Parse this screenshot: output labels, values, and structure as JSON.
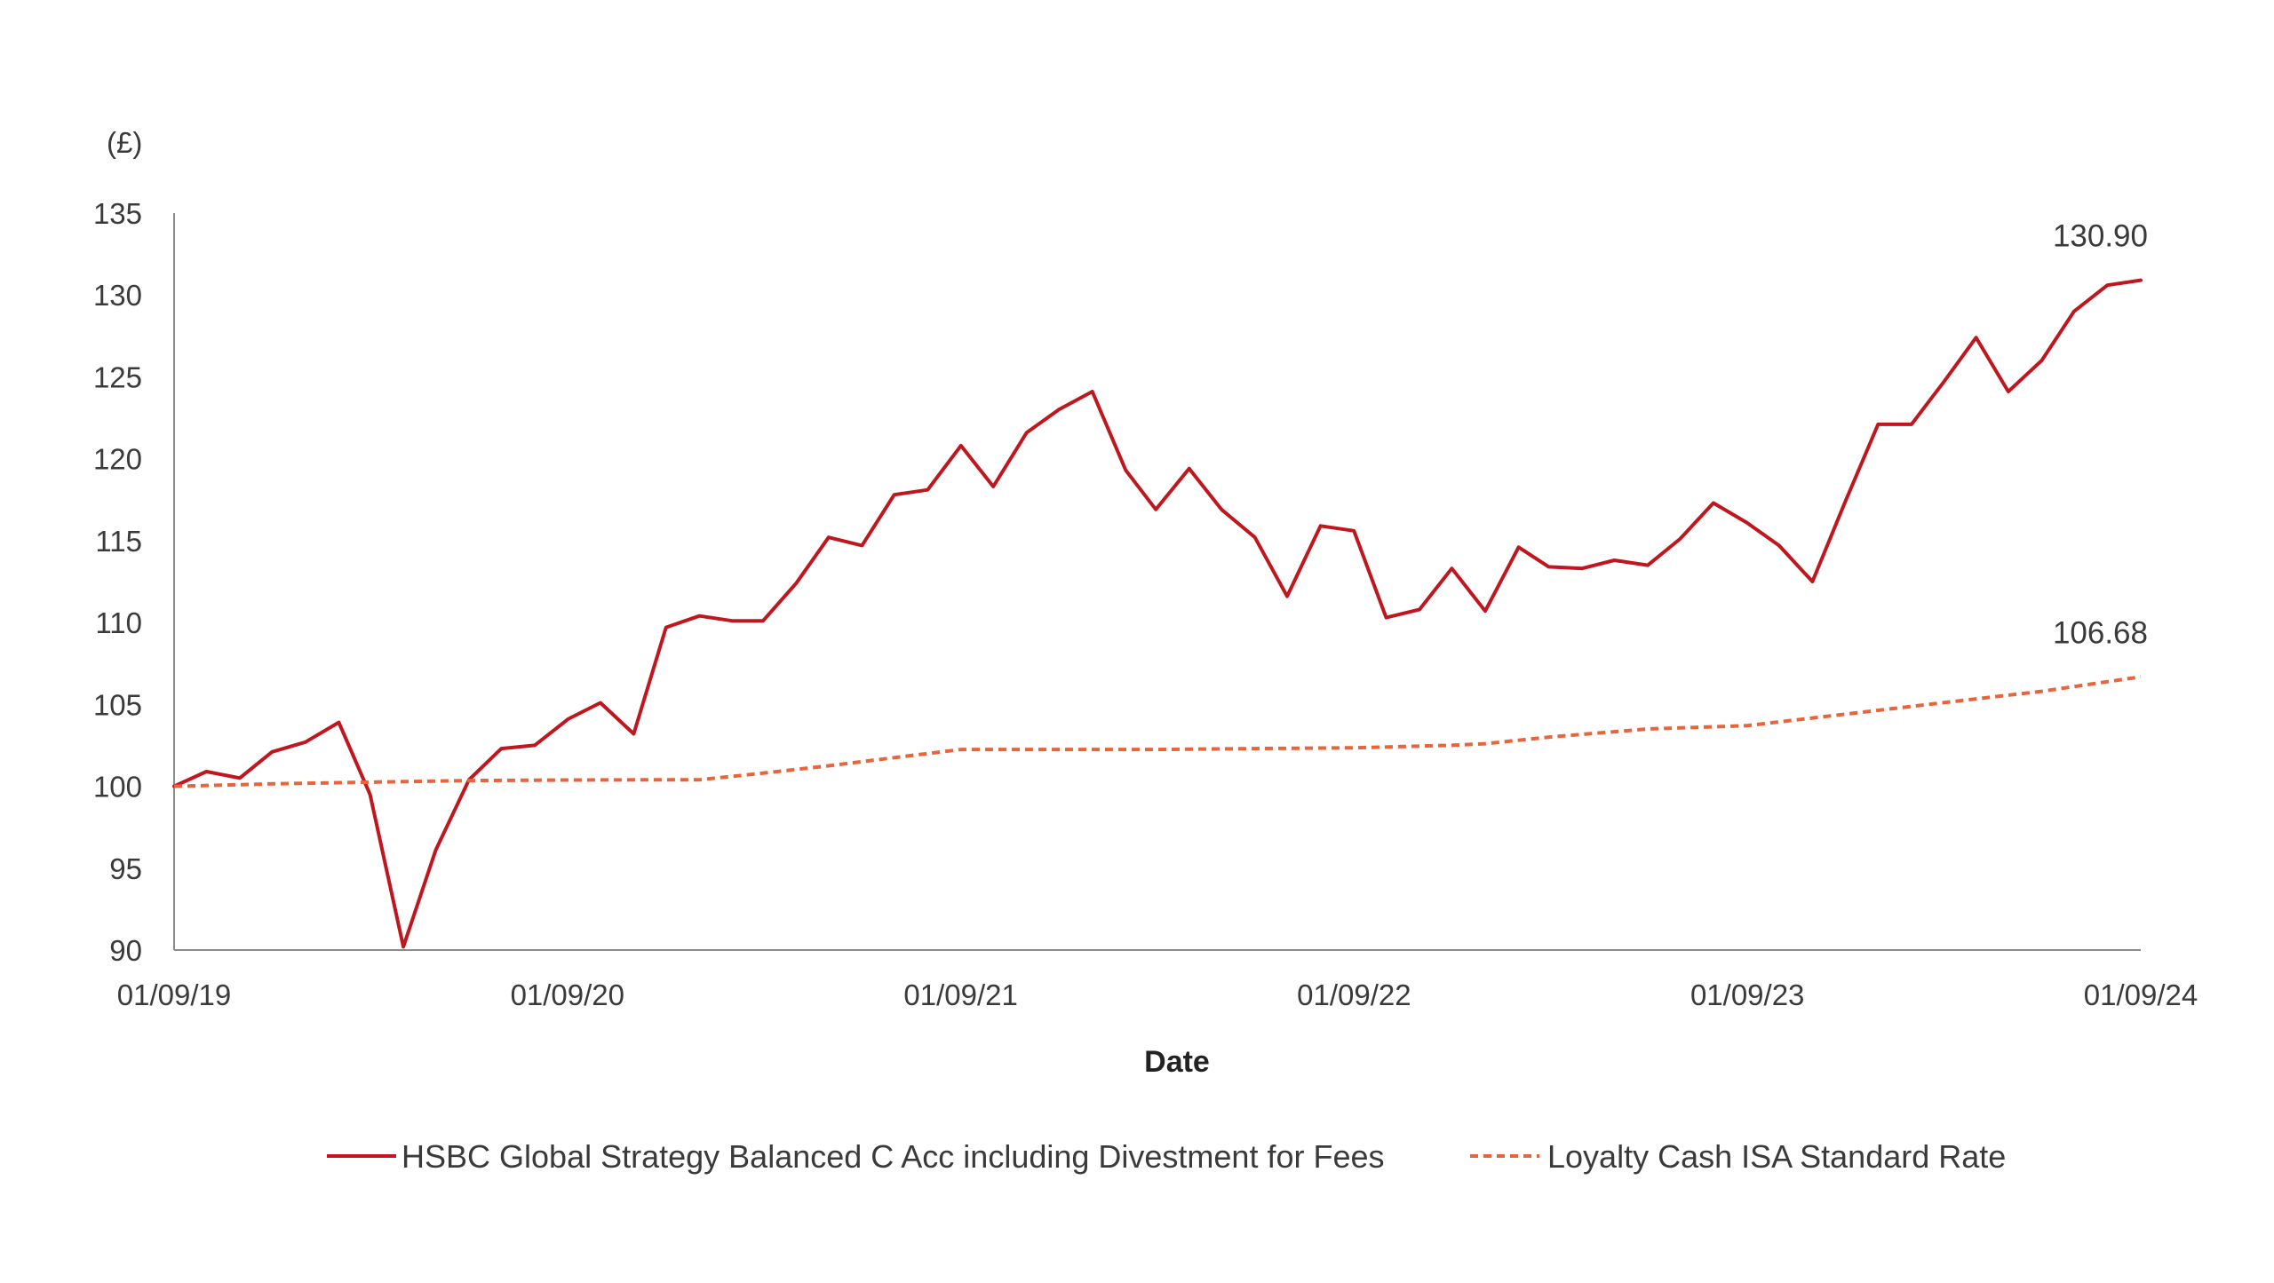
{
  "chart_data": {
    "type": "line",
    "title": "",
    "y_unit_label": "(£)",
    "xlabel": "Date",
    "ylabel": "",
    "ylim": [
      90,
      135
    ],
    "y_ticks": [
      90,
      95,
      100,
      105,
      110,
      115,
      120,
      125,
      130,
      135
    ],
    "y_tick_labels": [
      "90",
      "95",
      "100",
      "105",
      "110",
      "115",
      "120",
      "125",
      "130",
      "135"
    ],
    "x_ticks": [
      "01/09/19",
      "01/09/20",
      "01/09/21",
      "01/09/22",
      "01/09/23",
      "01/09/24"
    ],
    "grid": false,
    "legend_position": "bottom",
    "series": [
      {
        "name": "HSBC Global Strategy Balanced C Acc including Divestment for Fees",
        "color": "#c0161e",
        "style": "solid",
        "end_label": "130.90",
        "points": [
          [
            "2019-09-01",
            100.0
          ],
          [
            "2019-10-01",
            100.9
          ],
          [
            "2019-11-01",
            100.5
          ],
          [
            "2019-12-01",
            102.1
          ],
          [
            "2020-01-01",
            102.7
          ],
          [
            "2020-02-01",
            103.9
          ],
          [
            "2020-03-01",
            99.5
          ],
          [
            "2020-04-01",
            90.2
          ],
          [
            "2020-05-01",
            96.1
          ],
          [
            "2020-06-01",
            100.4
          ],
          [
            "2020-07-01",
            102.3
          ],
          [
            "2020-08-01",
            102.5
          ],
          [
            "2020-09-01",
            104.1
          ],
          [
            "2020-10-01",
            105.1
          ],
          [
            "2020-11-01",
            103.2
          ],
          [
            "2020-12-01",
            109.7
          ],
          [
            "2021-01-01",
            110.4
          ],
          [
            "2021-02-01",
            110.1
          ],
          [
            "2021-03-01",
            110.1
          ],
          [
            "2021-04-01",
            112.4
          ],
          [
            "2021-05-01",
            115.2
          ],
          [
            "2021-06-01",
            114.7
          ],
          [
            "2021-07-01",
            117.8
          ],
          [
            "2021-08-01",
            118.1
          ],
          [
            "2021-09-01",
            120.8
          ],
          [
            "2021-10-01",
            118.3
          ],
          [
            "2021-11-01",
            121.6
          ],
          [
            "2021-12-01",
            123.0
          ],
          [
            "2022-01-01",
            124.1
          ],
          [
            "2022-02-01",
            119.3
          ],
          [
            "2022-03-01",
            116.9
          ],
          [
            "2022-04-01",
            119.4
          ],
          [
            "2022-05-01",
            116.9
          ],
          [
            "2022-06-01",
            115.2
          ],
          [
            "2022-07-01",
            111.6
          ],
          [
            "2022-08-01",
            115.9
          ],
          [
            "2022-09-01",
            115.6
          ],
          [
            "2022-10-01",
            110.3
          ],
          [
            "2022-11-01",
            110.8
          ],
          [
            "2022-12-01",
            113.3
          ],
          [
            "2023-01-01",
            110.7
          ],
          [
            "2023-02-01",
            114.6
          ],
          [
            "2023-03-01",
            113.4
          ],
          [
            "2023-04-01",
            113.3
          ],
          [
            "2023-05-01",
            113.8
          ],
          [
            "2023-06-01",
            113.5
          ],
          [
            "2023-07-01",
            115.1
          ],
          [
            "2023-08-01",
            117.3
          ],
          [
            "2023-09-01",
            116.1
          ],
          [
            "2023-10-01",
            114.7
          ],
          [
            "2023-11-01",
            112.5
          ],
          [
            "2023-12-01",
            117.3
          ],
          [
            "2024-01-01",
            122.1
          ],
          [
            "2024-02-01",
            122.1
          ],
          [
            "2024-03-01",
            124.6
          ],
          [
            "2024-04-01",
            127.4
          ],
          [
            "2024-05-01",
            124.1
          ],
          [
            "2024-06-01",
            126.0
          ],
          [
            "2024-07-01",
            129.0
          ],
          [
            "2024-08-01",
            130.6
          ],
          [
            "2024-09-01",
            130.9
          ]
        ]
      },
      {
        "name": "Loyalty Cash ISA Standard Rate",
        "color": "#e8643c",
        "style": "dashed",
        "end_label": "106.68",
        "points": [
          [
            "2019-09-01",
            100.0
          ],
          [
            "2019-12-01",
            100.15
          ],
          [
            "2020-03-01",
            100.25
          ],
          [
            "2020-06-01",
            100.35
          ],
          [
            "2020-09-01",
            100.38
          ],
          [
            "2020-12-01",
            100.4
          ],
          [
            "2021-01-01",
            100.4
          ],
          [
            "2021-03-01",
            100.8
          ],
          [
            "2021-05-01",
            101.25
          ],
          [
            "2021-07-01",
            101.75
          ],
          [
            "2021-09-01",
            102.25
          ],
          [
            "2021-12-01",
            102.25
          ],
          [
            "2022-03-01",
            102.25
          ],
          [
            "2022-06-01",
            102.3
          ],
          [
            "2022-09-01",
            102.35
          ],
          [
            "2022-12-01",
            102.5
          ],
          [
            "2023-01-01",
            102.6
          ],
          [
            "2023-03-01",
            103.0
          ],
          [
            "2023-06-01",
            103.5
          ],
          [
            "2023-09-01",
            103.7
          ],
          [
            "2023-12-01",
            104.4
          ],
          [
            "2024-03-01",
            105.1
          ],
          [
            "2024-06-01",
            105.8
          ],
          [
            "2024-09-01",
            106.68
          ]
        ]
      }
    ]
  }
}
